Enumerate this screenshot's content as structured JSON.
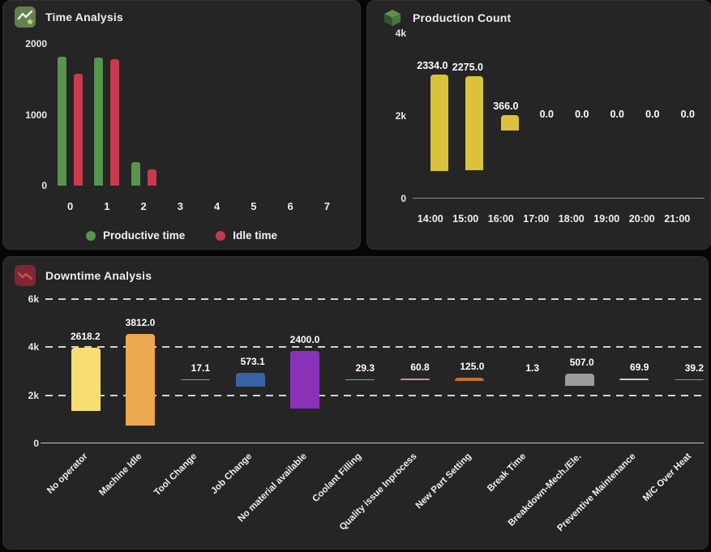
{
  "colors": {
    "page_bg": "#060606",
    "panel_bg": "#252525"
  },
  "panels": {
    "time_analysis": {
      "title": "Time Analysis",
      "icon": "line-chart-star-icon",
      "chart_data": {
        "type": "bar",
        "grouped": true,
        "categories": [
          "0",
          "1",
          "2",
          "3",
          "4",
          "5",
          "6",
          "7"
        ],
        "series": [
          {
            "name": "Productive time",
            "color": "#57944C",
            "values": [
              1820,
              1805,
              330,
              0,
              0,
              0,
              0,
              0
            ]
          },
          {
            "name": "Idle time",
            "color": "#C93A4D",
            "values": [
              1580,
              1785,
              230,
              0,
              0,
              0,
              0,
              0
            ]
          }
        ],
        "ylim": [
          0,
          2000
        ],
        "yticks": [
          "2000",
          "1000",
          "0"
        ],
        "grid": false,
        "legend_position": "bottom"
      }
    },
    "production_count": {
      "title": "Production Count",
      "icon": "cube-icon",
      "chart_data": {
        "type": "bar",
        "categories": [
          "14:00",
          "15:00",
          "16:00",
          "17:00",
          "18:00",
          "19:00",
          "20:00",
          "21:00"
        ],
        "values": [
          2334.0,
          2275.0,
          366.0,
          0.0,
          0.0,
          0.0,
          0.0,
          0.0
        ],
        "value_labels": [
          "2334.0",
          "2275.0",
          "366.0",
          "0.0",
          "0.0",
          "0.0",
          "0.0",
          "0.0"
        ],
        "bar_color": "#DCC13C",
        "ylim": [
          0,
          4000
        ],
        "yticks": [
          "4k",
          "2k",
          "0"
        ],
        "grid": false
      }
    },
    "downtime_analysis": {
      "title": "Downtime Analysis",
      "icon": "downtrend-chart-icon",
      "chart_data": {
        "type": "bar",
        "categories": [
          "No operator",
          "Machine Idle",
          "Tool Change",
          "Job Change",
          "No material available",
          "Coolant Filling",
          "Quality issue Inprocess",
          "New Part Setting",
          "Break Time",
          "Breakdown-Mech./Ele.",
          "Preventive Maintenance",
          "M/C Over Heat"
        ],
        "values": [
          2618.2,
          3812.0,
          17.1,
          573.1,
          2400.0,
          29.3,
          60.8,
          125.0,
          1.3,
          507.0,
          69.9,
          39.2
        ],
        "value_labels": [
          "2618.2",
          "3812.0",
          "17.1",
          "573.1",
          "2400.0",
          "29.3",
          "60.8",
          "125.0",
          "1.3",
          "507.0",
          "69.9",
          "39.2"
        ],
        "bar_colors": [
          "#F8DE71",
          "#ECA94F",
          "#67B564",
          "#3A62A8",
          "#8932B8",
          "#4DB6A8",
          "#DA8890",
          "#C1722F",
          "#8E8E8E",
          "#9C9C9C",
          "#CACCCF",
          "#B08A63"
        ],
        "ylim": [
          0,
          6000
        ],
        "yticks": [
          "6k",
          "4k",
          "2k",
          "0"
        ],
        "grid": "dashed"
      }
    }
  }
}
